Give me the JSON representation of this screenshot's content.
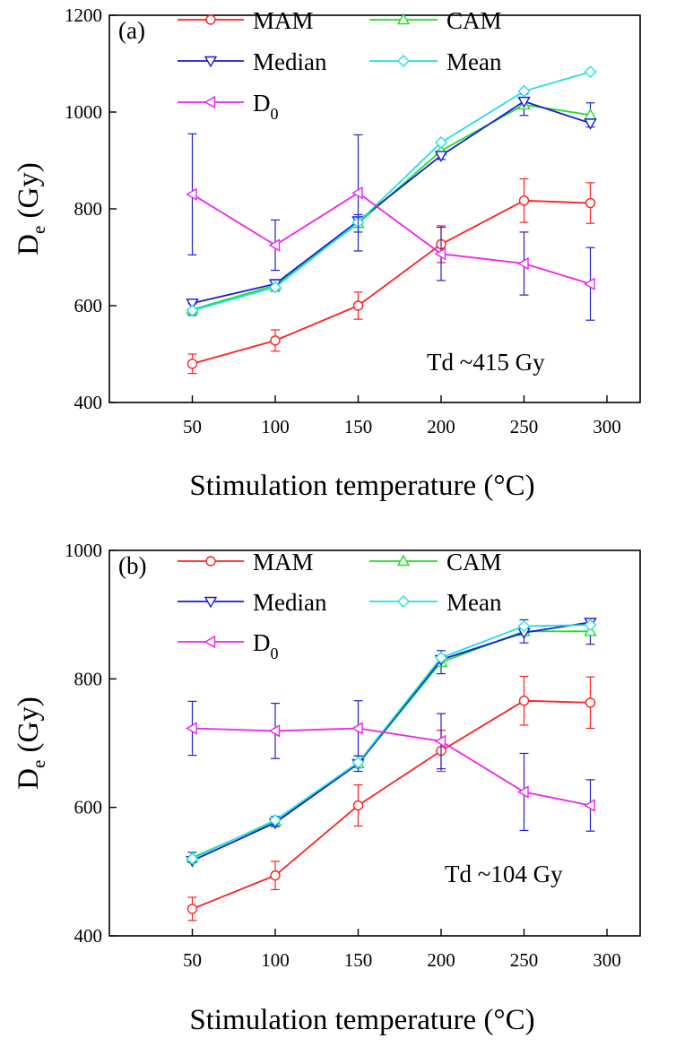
{
  "chart_data": [
    {
      "type": "line",
      "panel_label": "(a)",
      "x": [
        50,
        100,
        150,
        200,
        250,
        290
      ],
      "xlabel": "Stimulation temperature (°C)",
      "ylabel_main": "D",
      "ylabel_sub": "e",
      "ylabel_unit": " (Gy)",
      "xlim": [
        0,
        320
      ],
      "ylim": [
        400,
        1200
      ],
      "xticks": [
        50,
        100,
        150,
        200,
        250,
        300
      ],
      "yticks": [
        400,
        600,
        800,
        1000,
        1200
      ],
      "annotation": "Td ~415 Gy",
      "legend_position": "top",
      "series": [
        {
          "name": "MAM",
          "name_sub": "",
          "color": "#ff2020",
          "marker": "circle",
          "values": [
            480,
            528,
            600,
            727,
            817,
            812
          ],
          "errors": [
            20,
            22,
            28,
            38,
            45,
            42
          ],
          "error_color": "#ff2020"
        },
        {
          "name": "CAM",
          "name_sub": "",
          "color": "#22dd22",
          "marker": "triangle-up",
          "values": [
            592,
            642,
            770,
            920,
            1015,
            994
          ],
          "errors": [
            12,
            12,
            18,
            18,
            22,
            25
          ],
          "error_color": "#2222cc"
        },
        {
          "name": "Median",
          "name_sub": "",
          "color": "#1a1adb",
          "marker": "triangle-down",
          "values": [
            605,
            645,
            775,
            910,
            1022,
            977
          ],
          "errors": [
            0,
            0,
            0,
            0,
            0,
            0
          ],
          "error_color": "#1a1adb"
        },
        {
          "name": "Mean",
          "name_sub": "",
          "color": "#22e0e0",
          "marker": "diamond",
          "values": [
            590,
            638,
            772,
            937,
            1043,
            1083
          ],
          "errors": [
            0,
            0,
            0,
            0,
            0,
            0
          ],
          "error_color": "#22e0e0"
        },
        {
          "name": "D",
          "name_sub": "0",
          "color": "#ee22ee",
          "marker": "triangle-left",
          "values": [
            830,
            725,
            833,
            707,
            687,
            645
          ],
          "errors": [
            125,
            52,
            120,
            55,
            65,
            75
          ],
          "error_color": "#2222cc"
        }
      ]
    },
    {
      "type": "line",
      "panel_label": "(b)",
      "x": [
        50,
        100,
        150,
        200,
        250,
        290
      ],
      "xlabel": "Stimulation temperature (°C)",
      "ylabel_main": "D",
      "ylabel_sub": "e",
      "ylabel_unit": " (Gy)",
      "xlim": [
        0,
        320
      ],
      "ylim": [
        400,
        1000
      ],
      "xticks": [
        50,
        100,
        150,
        200,
        250,
        300
      ],
      "yticks": [
        400,
        600,
        800,
        1000
      ],
      "annotation": "Td ~104 Gy",
      "legend_position": "top",
      "series": [
        {
          "name": "MAM",
          "name_sub": "",
          "color": "#ff2020",
          "marker": "circle",
          "values": [
            442,
            494,
            603,
            688,
            766,
            763
          ],
          "errors": [
            18,
            22,
            32,
            32,
            38,
            40
          ],
          "error_color": "#ff2020"
        },
        {
          "name": "CAM",
          "name_sub": "",
          "color": "#22dd22",
          "marker": "triangle-up",
          "values": [
            522,
            578,
            668,
            826,
            874,
            874
          ],
          "errors": [
            8,
            8,
            12,
            18,
            18,
            20
          ],
          "error_color": "#2222cc"
        },
        {
          "name": "Median",
          "name_sub": "",
          "color": "#1a1adb",
          "marker": "triangle-down",
          "values": [
            517,
            576,
            668,
            830,
            872,
            888
          ],
          "errors": [
            0,
            0,
            0,
            0,
            0,
            0
          ],
          "error_color": "#1a1adb"
        },
        {
          "name": "Mean",
          "name_sub": "",
          "color": "#22e0e0",
          "marker": "diamond",
          "values": [
            520,
            580,
            670,
            833,
            882,
            884
          ],
          "errors": [
            0,
            0,
            0,
            0,
            0,
            0
          ],
          "error_color": "#22e0e0"
        },
        {
          "name": "D",
          "name_sub": "0",
          "color": "#ee22ee",
          "marker": "triangle-left",
          "values": [
            723,
            719,
            723,
            703,
            624,
            603
          ],
          "errors": [
            42,
            43,
            43,
            43,
            60,
            40
          ],
          "error_color": "#2222cc"
        }
      ]
    }
  ]
}
